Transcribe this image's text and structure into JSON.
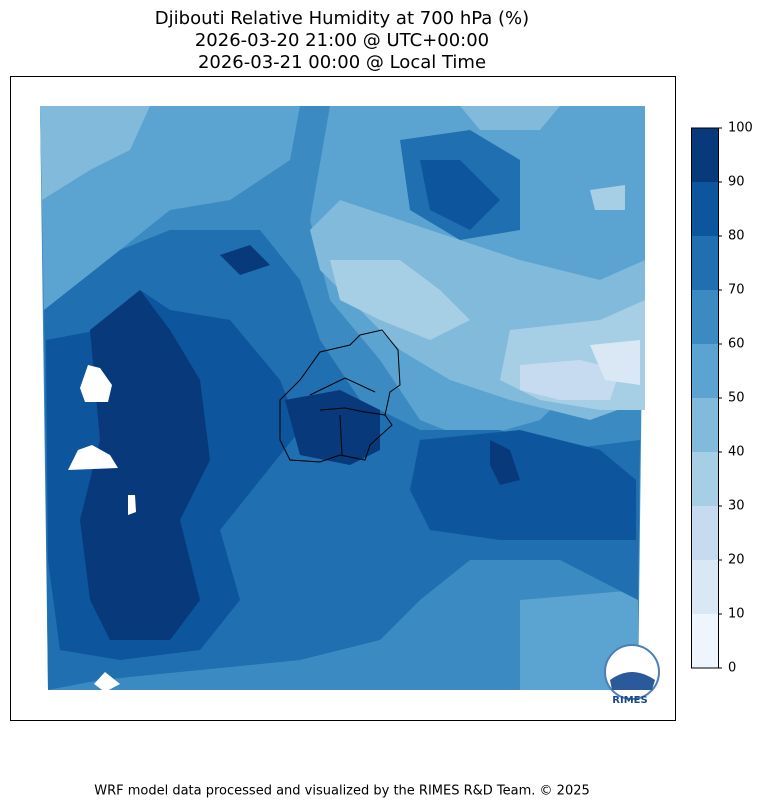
{
  "chart_data": {
    "type": "contour-map",
    "title": [
      "Djibouti Relative Humidity at 700 hPa (%)",
      "2026-03-20 21:00 @ UTC+00:00",
      "2026-03-21 00:00 @ Local Time"
    ],
    "colorbar": {
      "clim": [
        0,
        100
      ],
      "ticks": [
        0,
        10,
        20,
        30,
        40,
        50,
        60,
        70,
        80,
        90,
        100
      ],
      "colors": [
        "#eef5fc",
        "#dae8f6",
        "#c6dbef",
        "#a6cee4",
        "#82badb",
        "#5ba3d0",
        "#3b8bc2",
        "#1f6fb1",
        "#0d559c",
        "#08397a"
      ]
    },
    "logo_text": "RIMES",
    "footer": "WRF model data processed and visualized by the RIMES R&D Team. © 2025"
  }
}
